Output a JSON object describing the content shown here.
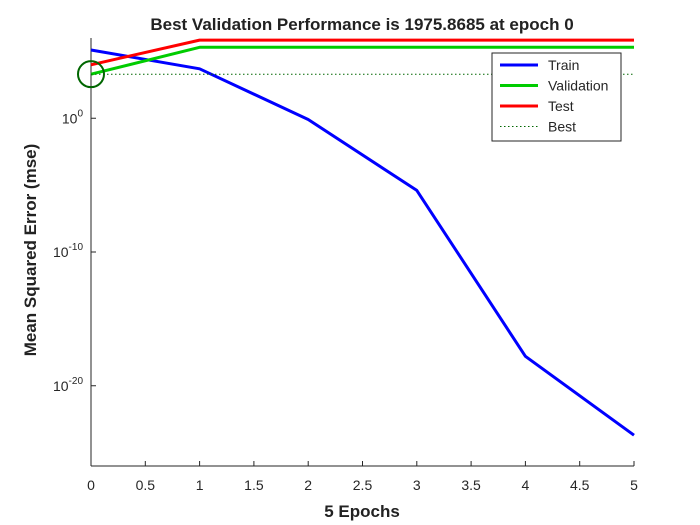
{
  "chart_data": {
    "type": "line",
    "title": "Best Validation Performance is 1975.8685 at epoch 0",
    "xlabel": "5 Epochs",
    "ylabel": "Mean Squared Error  (mse)",
    "x_scale": "linear",
    "y_scale": "log",
    "xlim": [
      0,
      5
    ],
    "ylim": [
      1e-26,
      1000000.0
    ],
    "x_ticks": [
      0,
      0.5,
      1,
      1.5,
      2,
      2.5,
      3,
      3.5,
      4,
      4.5,
      5
    ],
    "x_tick_labels": [
      "0",
      "0.5",
      "1",
      "1.5",
      "2",
      "2.5",
      "3",
      "3.5",
      "4",
      "4.5",
      "5"
    ],
    "y_ticks": [
      {
        "value": 1.0,
        "base": "10",
        "exponent": "0"
      },
      {
        "value": 1e-10,
        "base": "10",
        "exponent": "-10"
      },
      {
        "value": 1e-20,
        "base": "10",
        "exponent": "-20"
      }
    ],
    "grid": false,
    "legend_position": "top-right",
    "series": [
      {
        "name": "Train",
        "color": "#0000ff",
        "style": "solid",
        "x": [
          0,
          1,
          2,
          3,
          4,
          5
        ],
        "y": [
          126000,
          5000,
          0.8,
          4e-06,
          1.6e-18,
          2e-24
        ]
      },
      {
        "name": "Validation",
        "color": "#00cc00",
        "style": "solid",
        "x": [
          0,
          1,
          5
        ],
        "y": [
          1975.8685,
          200000,
          200000
        ]
      },
      {
        "name": "Test",
        "color": "#ff0000",
        "style": "solid",
        "x": [
          0,
          1,
          5
        ],
        "y": [
          10000,
          700000,
          700000
        ]
      },
      {
        "name": "Best",
        "color": "#006600",
        "style": "dotted",
        "x": [
          0,
          5
        ],
        "y": [
          1975.8685,
          1975.8685
        ]
      }
    ],
    "best_marker": {
      "x": 0,
      "y": 1975.8685,
      "color": "#006600",
      "shape": "circle"
    }
  }
}
